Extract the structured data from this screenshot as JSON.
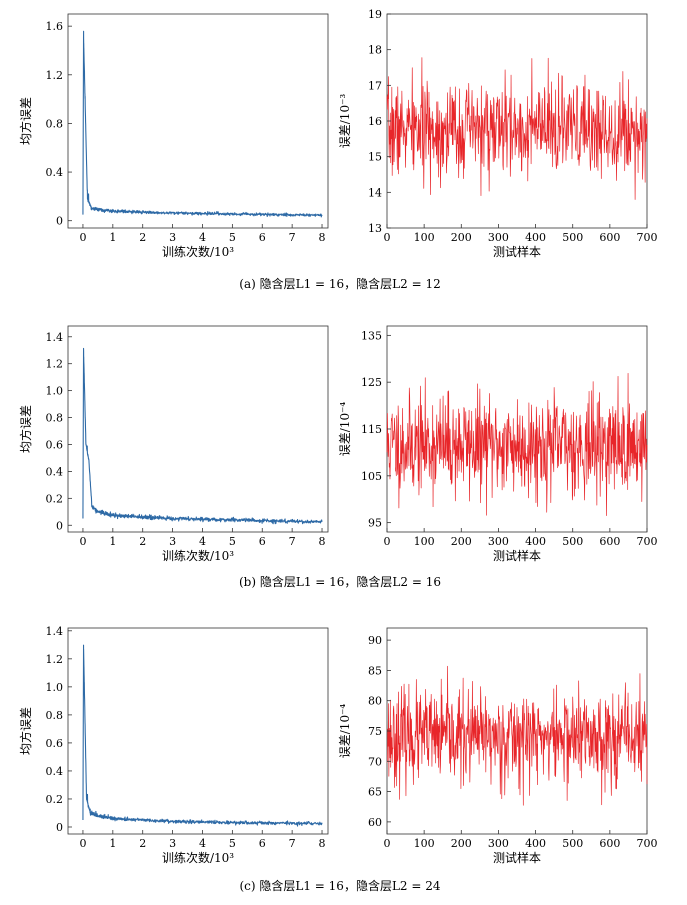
{
  "figure": {
    "loss_color": "#2e6aa6",
    "error_color": "#e8262a",
    "captions": [
      "(a) 隐含层L1 = 16，隐含层L2 = 12",
      "(b) 隐含层L1 = 16，隐含层L2 = 16",
      "(c) 隐含层L1 = 16，隐含层L2 = 24"
    ]
  },
  "chart_data": [
    {
      "type": "line",
      "id": "a-loss",
      "xlabel": "训练次数/10³",
      "ylabel": "均方误差",
      "xlim": [
        -0.5,
        8.2
      ],
      "ylim": [
        -0.06,
        1.7
      ],
      "xticks": [
        0,
        1,
        2,
        3,
        4,
        5,
        6,
        7,
        8
      ],
      "yticks": [
        0,
        0.4,
        0.8,
        1.2,
        1.6
      ],
      "ytick_labels": [
        "0",
        "0.4",
        "0.8",
        "1.2",
        "1.6"
      ],
      "curve": {
        "peak_x": 0.02,
        "peak": 1.52,
        "knots_x": [
          0.15,
          0.3,
          1,
          2,
          3,
          5,
          8
        ],
        "knots_y": [
          0.18,
          0.1,
          0.08,
          0.07,
          0.062,
          0.055,
          0.045
        ],
        "noise": 0.006
      }
    },
    {
      "type": "line",
      "id": "a-error",
      "xlabel": "测试样本",
      "ylabel": "误差/10⁻³",
      "xlim": [
        0,
        700
      ],
      "ylim": [
        13,
        19
      ],
      "xticks": [
        0,
        100,
        200,
        300,
        400,
        500,
        600,
        700
      ],
      "yticks": [
        13,
        14,
        15,
        16,
        17,
        18,
        19
      ],
      "ytick_labels": [
        "13",
        "14",
        "15",
        "16",
        "17",
        "18",
        "19"
      ],
      "noise": {
        "mean": 15.75,
        "sd": 0.65,
        "min": 13.3,
        "max": 18.65,
        "seed": 7
      }
    },
    {
      "type": "line",
      "id": "b-loss",
      "xlabel": "训练次数/10³",
      "ylabel": "均方误差",
      "xlim": [
        -0.5,
        8.2
      ],
      "ylim": [
        -0.05,
        1.48
      ],
      "xticks": [
        0,
        1,
        2,
        3,
        4,
        5,
        6,
        7,
        8
      ],
      "yticks": [
        0,
        0.2,
        0.4,
        0.6,
        0.8,
        1.0,
        1.2,
        1.4
      ],
      "ytick_labels": [
        "0",
        "0.2",
        "0.4",
        "0.6",
        "0.8",
        "1.0",
        "1.2",
        "1.4"
      ],
      "curve": {
        "peak_x": 0.02,
        "peak": 1.3,
        "knots_x": [
          0.1,
          0.2,
          0.3,
          0.5,
          1,
          2,
          3,
          5,
          8
        ],
        "knots_y": [
          0.6,
          0.48,
          0.14,
          0.1,
          0.075,
          0.06,
          0.05,
          0.04,
          0.025
        ],
        "noise": 0.007
      }
    },
    {
      "type": "line",
      "id": "b-error",
      "xlabel": "测试样本",
      "ylabel": "误差/10⁻⁴",
      "xlim": [
        0,
        700
      ],
      "ylim": [
        93,
        137
      ],
      "xticks": [
        0,
        100,
        200,
        300,
        400,
        500,
        600,
        700
      ],
      "yticks": [
        95,
        105,
        115,
        125,
        135
      ],
      "ytick_labels": [
        "95",
        "105",
        "115",
        "125",
        "135"
      ],
      "noise": {
        "mean": 111.5,
        "sd": 5.3,
        "min": 96.5,
        "max": 134.5,
        "seed": 11
      }
    },
    {
      "type": "line",
      "id": "c-loss",
      "xlabel": "训练次数/10³",
      "ylabel": "均方误差",
      "xlim": [
        -0.5,
        8.2
      ],
      "ylim": [
        -0.05,
        1.42
      ],
      "xticks": [
        0,
        1,
        2,
        3,
        4,
        5,
        6,
        7,
        8
      ],
      "yticks": [
        0,
        0.2,
        0.4,
        0.6,
        0.8,
        1.0,
        1.2,
        1.4
      ],
      "ytick_labels": [
        "0",
        "0.2",
        "0.4",
        "0.6",
        "0.8",
        "1.0",
        "1.2",
        "1.4"
      ],
      "curve": {
        "peak_x": 0.02,
        "peak": 1.29,
        "knots_x": [
          0.12,
          0.25,
          0.5,
          1,
          2,
          3,
          5,
          8
        ],
        "knots_y": [
          0.2,
          0.1,
          0.08,
          0.06,
          0.05,
          0.04,
          0.032,
          0.025
        ],
        "noise": 0.006
      }
    },
    {
      "type": "line",
      "id": "c-error",
      "xlabel": "测试样本",
      "ylabel": "误差/10⁻⁴",
      "xlim": [
        0,
        700
      ],
      "ylim": [
        58,
        92
      ],
      "xticks": [
        0,
        100,
        200,
        300,
        400,
        500,
        600,
        700
      ],
      "yticks": [
        60,
        65,
        70,
        75,
        80,
        85,
        90
      ],
      "ytick_labels": [
        "60",
        "65",
        "70",
        "75",
        "80",
        "85",
        "90"
      ],
      "noise": {
        "mean": 74,
        "sd": 3.8,
        "min": 60.5,
        "max": 86,
        "seed": 23
      }
    }
  ]
}
